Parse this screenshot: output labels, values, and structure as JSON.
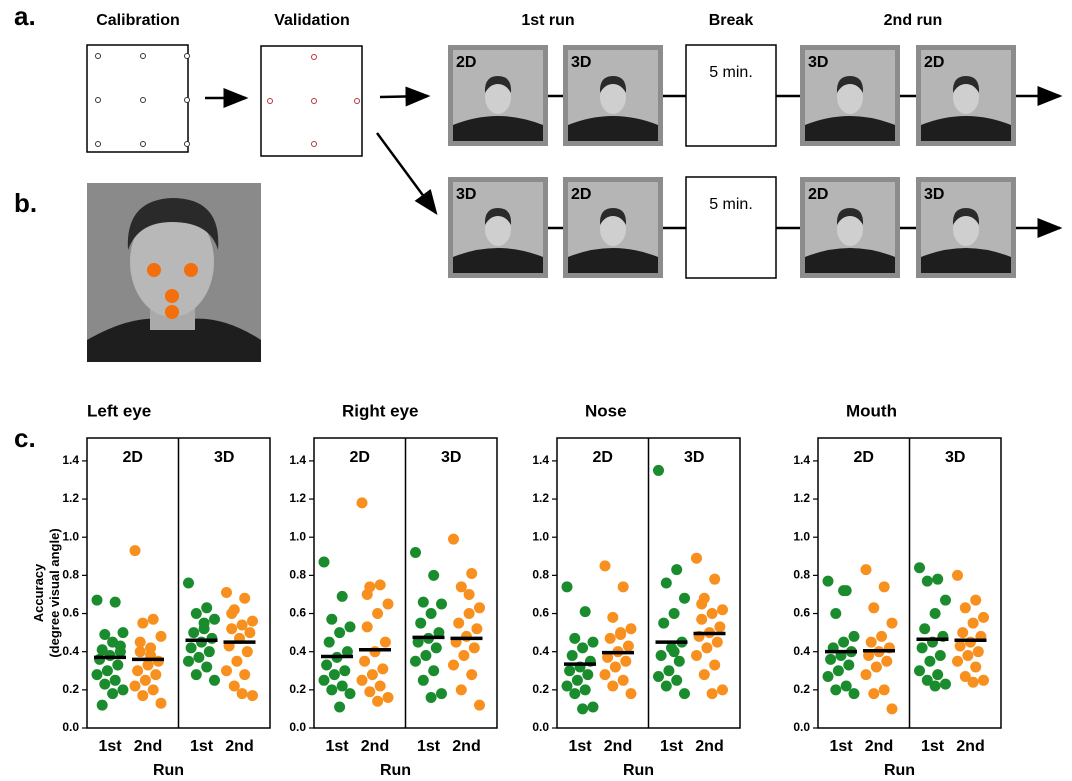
{
  "figure": {
    "panel_labels": [
      "a.",
      "b.",
      "c."
    ],
    "calibration": "Calibration",
    "validation": "Validation",
    "headers": [
      "1st run",
      "Break",
      "2nd run"
    ],
    "break_label": "5 min.",
    "rows": [
      [
        "2D",
        "3D",
        "3D",
        "2D"
      ],
      [
        "3D",
        "2D",
        "2D",
        "3D"
      ]
    ]
  },
  "chart_data": [
    {
      "type": "strip",
      "title": "Left eye",
      "ylabel": "Accuracy\n(degree visual angle)",
      "xlabel": "Run",
      "panels": [
        "2D",
        "3D"
      ],
      "categories": [
        "1st",
        "2nd"
      ],
      "colors": [
        "#1a8c2e",
        "#f7901e"
      ],
      "ylim": [
        0,
        1.52
      ],
      "yticks": [
        {
          "value": 0,
          "label": "0.0"
        },
        {
          "value": 0.2,
          "label": "0.2"
        },
        {
          "value": 0.4,
          "label": "0.4"
        },
        {
          "value": 0.6,
          "label": "0.6"
        },
        {
          "value": 0.8,
          "label": "0.8"
        },
        {
          "value": 1.0,
          "label": "1.0"
        },
        {
          "value": 1.2,
          "label": "1.2"
        },
        {
          "value": 1.4,
          "label": "1.4"
        }
      ],
      "values": [
        [
          [
            0.67,
            0.66,
            0.49,
            0.5,
            0.45,
            0.41,
            0.4,
            0.38,
            0.36,
            0.33,
            0.3,
            0.28,
            0.25,
            0.23,
            0.2,
            0.18,
            0.12,
            0.43
          ],
          [
            0.93,
            0.57,
            0.55,
            0.48,
            0.42,
            0.4,
            0.35,
            0.33,
            0.3,
            0.28,
            0.25,
            0.22,
            0.2,
            0.17,
            0.13,
            0.38,
            0.45
          ]
        ],
        [
          [
            0.76,
            0.63,
            0.6,
            0.57,
            0.55,
            0.5,
            0.47,
            0.45,
            0.42,
            0.4,
            0.37,
            0.35,
            0.32,
            0.28,
            0.25,
            0.52
          ],
          [
            0.71,
            0.68,
            0.62,
            0.56,
            0.54,
            0.52,
            0.5,
            0.47,
            0.43,
            0.4,
            0.35,
            0.3,
            0.28,
            0.22,
            0.17,
            0.18,
            0.6
          ]
        ]
      ],
      "means": [
        [
          0.37,
          0.36
        ],
        [
          0.46,
          0.45
        ]
      ]
    },
    {
      "type": "strip",
      "title": "Right eye",
      "xlabel": "Run",
      "panels": [
        "2D",
        "3D"
      ],
      "categories": [
        "1st",
        "2nd"
      ],
      "colors": [
        "#1a8c2e",
        "#f7901e"
      ],
      "ylim": [
        0,
        1.52
      ],
      "yticks": [
        {
          "value": 0,
          "label": "0.0"
        },
        {
          "value": 0.2,
          "label": "0.2"
        },
        {
          "value": 0.4,
          "label": "0.4"
        },
        {
          "value": 0.6,
          "label": "0.6"
        },
        {
          "value": 0.8,
          "label": "0.8"
        },
        {
          "value": 1.0,
          "label": "1.0"
        },
        {
          "value": 1.2,
          "label": "1.2"
        },
        {
          "value": 1.4,
          "label": "1.4"
        }
      ],
      "values": [
        [
          [
            0.87,
            0.69,
            0.57,
            0.53,
            0.5,
            0.45,
            0.4,
            0.37,
            0.33,
            0.3,
            0.28,
            0.25,
            0.22,
            0.2,
            0.18,
            0.11
          ],
          [
            1.18,
            0.75,
            0.74,
            0.65,
            0.6,
            0.53,
            0.45,
            0.4,
            0.35,
            0.31,
            0.28,
            0.25,
            0.22,
            0.19,
            0.16,
            0.14,
            0.7
          ]
        ],
        [
          [
            0.92,
            0.8,
            0.66,
            0.65,
            0.6,
            0.55,
            0.5,
            0.47,
            0.45,
            0.42,
            0.38,
            0.35,
            0.3,
            0.25,
            0.18,
            0.16
          ],
          [
            0.99,
            0.81,
            0.74,
            0.63,
            0.6,
            0.55,
            0.52,
            0.48,
            0.45,
            0.42,
            0.38,
            0.33,
            0.28,
            0.2,
            0.12,
            0.7
          ]
        ]
      ],
      "means": [
        [
          0.375,
          0.41
        ],
        [
          0.475,
          0.47
        ]
      ]
    },
    {
      "type": "strip",
      "title": "Nose",
      "xlabel": "Run",
      "panels": [
        "2D",
        "3D"
      ],
      "categories": [
        "1st",
        "2nd"
      ],
      "colors": [
        "#1a8c2e",
        "#f7901e"
      ],
      "ylim": [
        0,
        1.52
      ],
      "yticks": [
        {
          "value": 0,
          "label": "0.0"
        },
        {
          "value": 0.2,
          "label": "0.2"
        },
        {
          "value": 0.4,
          "label": "0.4"
        },
        {
          "value": 0.6,
          "label": "0.6"
        },
        {
          "value": 0.8,
          "label": "0.8"
        },
        {
          "value": 1.0,
          "label": "1.0"
        },
        {
          "value": 1.2,
          "label": "1.2"
        },
        {
          "value": 1.4,
          "label": "1.4"
        }
      ],
      "values": [
        [
          [
            0.74,
            0.61,
            0.47,
            0.45,
            0.42,
            0.38,
            0.35,
            0.32,
            0.3,
            0.28,
            0.25,
            0.22,
            0.2,
            0.18,
            0.11,
            0.1
          ],
          [
            0.85,
            0.74,
            0.58,
            0.52,
            0.5,
            0.47,
            0.43,
            0.4,
            0.37,
            0.35,
            0.32,
            0.28,
            0.25,
            0.22,
            0.18,
            0.49
          ]
        ],
        [
          [
            1.35,
            0.83,
            0.76,
            0.68,
            0.6,
            0.55,
            0.45,
            0.42,
            0.38,
            0.35,
            0.3,
            0.27,
            0.25,
            0.22,
            0.18,
            0.4
          ],
          [
            0.89,
            0.78,
            0.68,
            0.62,
            0.6,
            0.57,
            0.53,
            0.5,
            0.48,
            0.45,
            0.42,
            0.38,
            0.33,
            0.28,
            0.2,
            0.18,
            0.65
          ]
        ]
      ],
      "means": [
        [
          0.335,
          0.395
        ],
        [
          0.45,
          0.495
        ]
      ]
    },
    {
      "type": "strip",
      "title": "Mouth",
      "xlabel": "Run",
      "panels": [
        "2D",
        "3D"
      ],
      "categories": [
        "1st",
        "2nd"
      ],
      "colors": [
        "#1a8c2e",
        "#f7901e"
      ],
      "ylim": [
        0,
        1.52
      ],
      "yticks": [
        {
          "value": 0,
          "label": "0.0"
        },
        {
          "value": 0.2,
          "label": "0.2"
        },
        {
          "value": 0.4,
          "label": "0.4"
        },
        {
          "value": 0.6,
          "label": "0.6"
        },
        {
          "value": 0.8,
          "label": "0.8"
        },
        {
          "value": 1.0,
          "label": "1.0"
        },
        {
          "value": 1.2,
          "label": "1.2"
        },
        {
          "value": 1.4,
          "label": "1.4"
        }
      ],
      "values": [
        [
          [
            0.77,
            0.72,
            0.6,
            0.48,
            0.45,
            0.42,
            0.4,
            0.38,
            0.36,
            0.33,
            0.3,
            0.27,
            0.22,
            0.2,
            0.18,
            0.72
          ],
          [
            0.83,
            0.74,
            0.63,
            0.55,
            0.48,
            0.45,
            0.42,
            0.4,
            0.38,
            0.35,
            0.32,
            0.28,
            0.2,
            0.18,
            0.1
          ]
        ],
        [
          [
            0.84,
            0.78,
            0.77,
            0.67,
            0.6,
            0.52,
            0.48,
            0.45,
            0.42,
            0.38,
            0.35,
            0.3,
            0.28,
            0.25,
            0.23,
            0.22
          ],
          [
            0.8,
            0.67,
            0.63,
            0.58,
            0.55,
            0.5,
            0.48,
            0.45,
            0.43,
            0.4,
            0.38,
            0.35,
            0.32,
            0.27,
            0.25,
            0.24
          ]
        ]
      ],
      "means": [
        [
          0.4,
          0.405
        ],
        [
          0.465,
          0.46
        ]
      ]
    }
  ]
}
